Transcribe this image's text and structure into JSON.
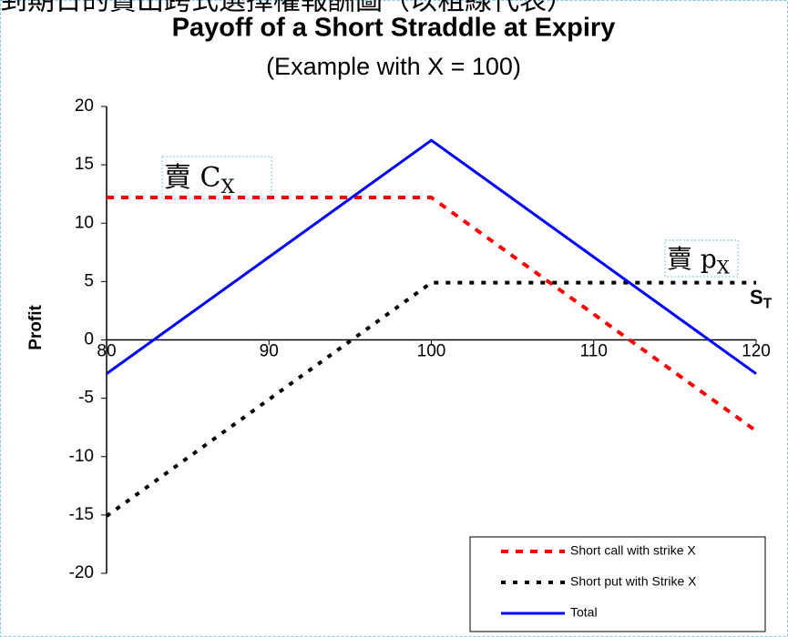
{
  "header_text": "到期日的賣出跨式選擇權報酬圖（以粗線代表）",
  "chart_data": {
    "type": "line",
    "title": "Payoff of a Short Straddle at Expiry",
    "subtitle": "(Example with X = 100)",
    "y_label": "Profit",
    "x": [
      80,
      100,
      120
    ],
    "series": [
      {
        "name": "Short call with strike X",
        "color": "#ff0000",
        "style": "dashed",
        "values": [
          12.2,
          12.2,
          -7.8
        ]
      },
      {
        "name": "Short put with Strike X",
        "color": "#000000",
        "style": "dotted",
        "values": [
          -15.1,
          4.9,
          4.9
        ]
      },
      {
        "name": "Total",
        "color": "#0000ff",
        "style": "solid",
        "values": [
          -2.9,
          17.1,
          -2.9
        ]
      }
    ],
    "xlim": [
      80,
      120
    ],
    "xticks": [
      80,
      90,
      100,
      110,
      120
    ],
    "ylim": [
      -20,
      20
    ],
    "yticks": [
      -20,
      -15,
      -10,
      -5,
      0,
      5,
      10,
      15,
      20
    ],
    "grid": false,
    "legend": "lower right",
    "annotations": [
      {
        "text": "賣 C",
        "sub": "X"
      },
      {
        "text": "賣 p",
        "sub": "X"
      },
      {
        "text": "S",
        "sub": "T"
      }
    ]
  }
}
